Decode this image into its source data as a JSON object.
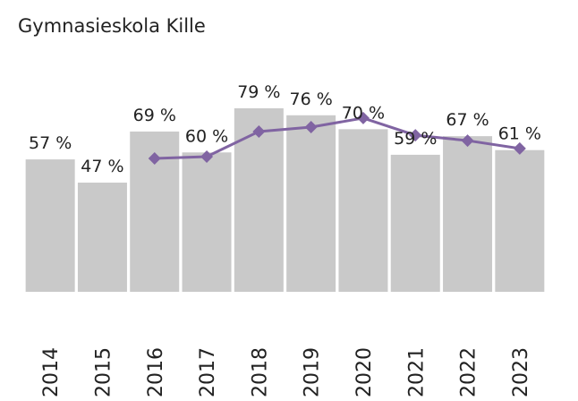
{
  "chart_data": {
    "type": "bar",
    "title": "Gymnasieskola Kille",
    "categories": [
      "2014",
      "2015",
      "2016",
      "2017",
      "2018",
      "2019",
      "2020",
      "2021",
      "2022",
      "2023"
    ],
    "ylim": [
      0,
      100
    ],
    "series": [
      {
        "color": "#c9c9c9",
        "values": [
          57,
          47,
          69,
          60,
          79,
          76,
          70,
          59,
          67,
          61
        ],
        "value_labels": [
          "57 %",
          "47 %",
          "69 %",
          "60 %",
          "79 %",
          "76 %",
          "70 %",
          "59 %",
          "67 %",
          "61 %"
        ]
      },
      {
        "type": "line",
        "color": "#8064a2",
        "values": [
          null,
          null,
          57.4,
          58.2,
          69,
          70.9,
          74.8,
          67.4,
          65.1,
          61.7
        ]
      }
    ]
  }
}
